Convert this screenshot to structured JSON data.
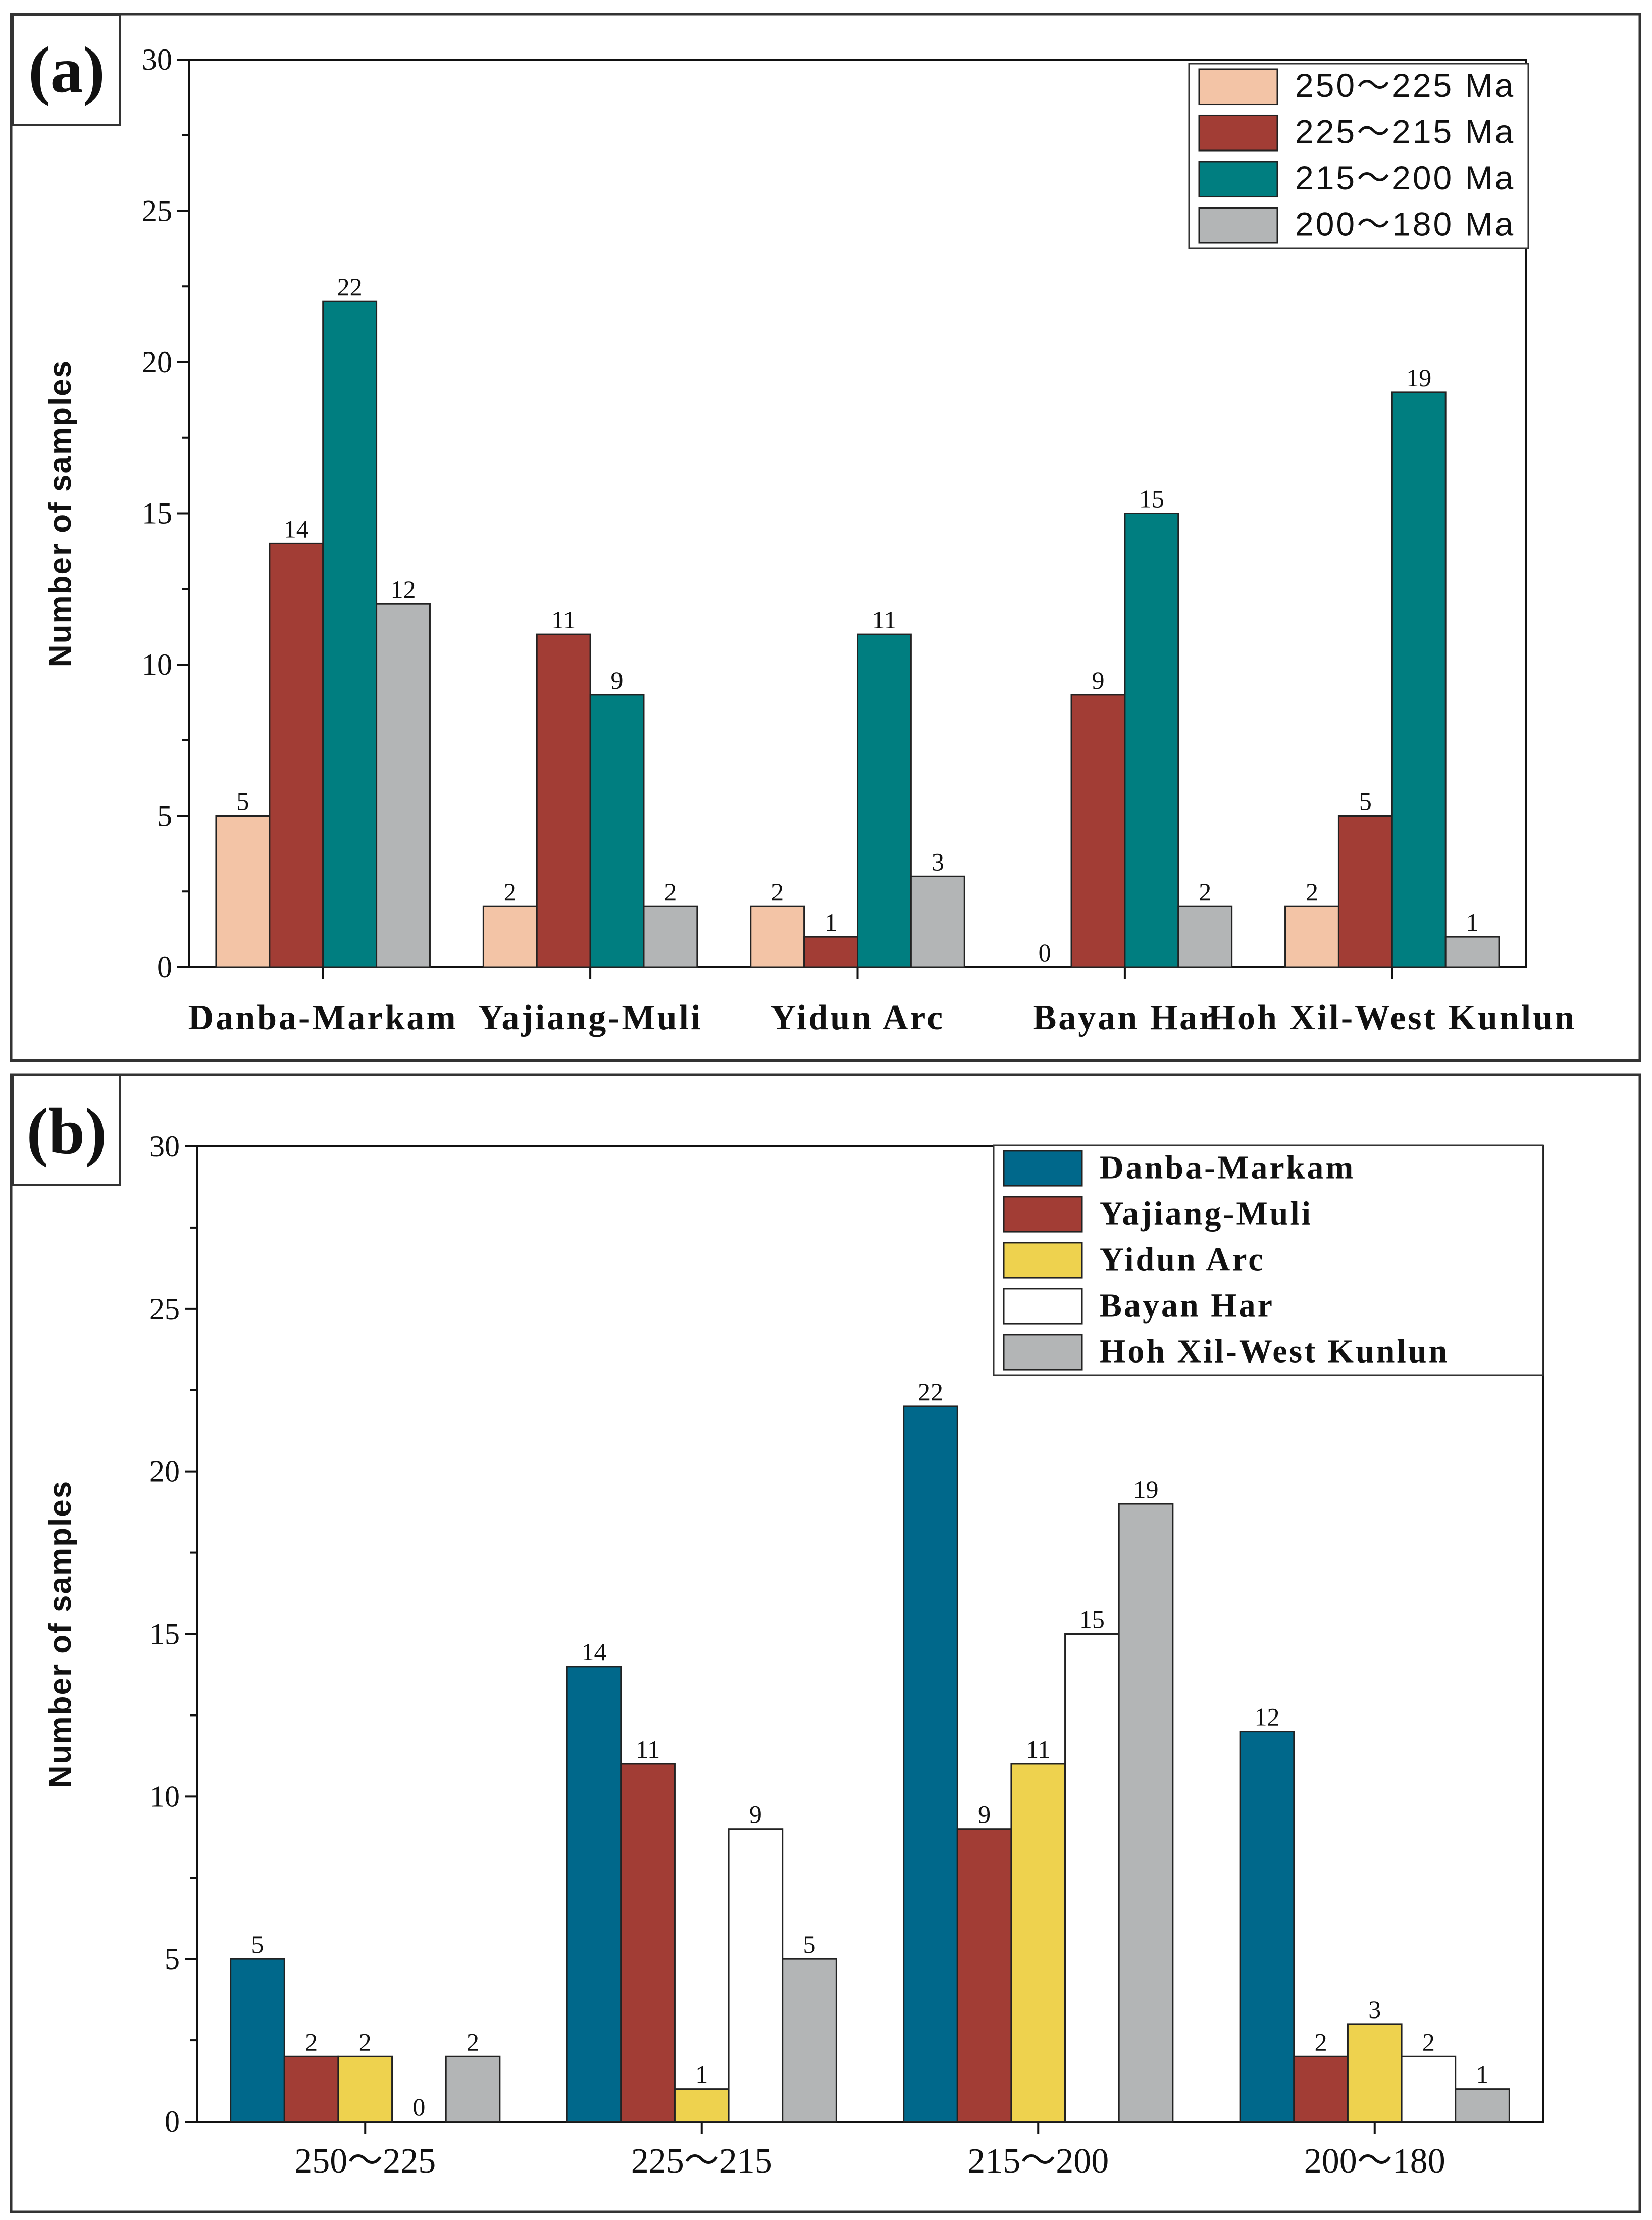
{
  "colors": {
    "age_250_225": "#F3C4A6",
    "age_225_215": "#A23D35",
    "age_215_200": "#007E80",
    "age_200_180": "#B3B5B6",
    "danba_markam": "#00688B",
    "yajiang_muli": "#A23D35",
    "yidun_arc": "#EED24E",
    "bayan_har": "#FFFFFF",
    "hoh_xil": "#B3B5B6"
  },
  "chart_data": [
    {
      "panel_label": "(a)",
      "type": "bar",
      "ylabel": "Number of samples",
      "xlabel": "",
      "ylim": [
        0,
        30
      ],
      "yticks": [
        0,
        5,
        10,
        15,
        20,
        25,
        30
      ],
      "categories": [
        "Danba-Markam",
        "Yajiang-Muli",
        "Yidun Arc",
        "Bayan Har",
        "Hoh Xil-West Kunlun"
      ],
      "legend_position": "top-right",
      "series": [
        {
          "name": "250～225 Ma",
          "color_key": "age_250_225",
          "values": [
            5,
            2,
            2,
            0,
            2
          ]
        },
        {
          "name": "225～215 Ma",
          "color_key": "age_225_215",
          "values": [
            14,
            11,
            1,
            9,
            5
          ]
        },
        {
          "name": "215～200 Ma",
          "color_key": "age_215_200",
          "values": [
            22,
            9,
            11,
            15,
            19
          ]
        },
        {
          "name": "200～180 Ma",
          "color_key": "age_200_180",
          "values": [
            12,
            2,
            3,
            2,
            1
          ]
        }
      ],
      "data_labels": [
        [
          "5",
          "2",
          "2",
          "0",
          "2"
        ],
        [
          "14",
          "11",
          "1",
          "9",
          "5"
        ],
        [
          "22",
          "9",
          "11",
          "15",
          "19"
        ],
        [
          "12",
          "2",
          "3",
          "2",
          "1"
        ]
      ]
    },
    {
      "panel_label": "(b)",
      "type": "bar",
      "ylabel": "Number of samples",
      "xlabel": "",
      "ylim": [
        0,
        30
      ],
      "yticks": [
        0,
        5,
        10,
        15,
        20,
        25,
        30
      ],
      "categories": [
        "250～225",
        "225～215",
        "215～200",
        "200～180"
      ],
      "legend_position": "top-right",
      "series": [
        {
          "name": "Danba-Markam",
          "color_key": "danba_markam",
          "values": [
            5,
            14,
            22,
            12
          ]
        },
        {
          "name": "Yajiang-Muli",
          "color_key": "yajiang_muli",
          "values": [
            2,
            11,
            9,
            2
          ]
        },
        {
          "name": "Yidun Arc",
          "color_key": "yidun_arc",
          "values": [
            2,
            1,
            11,
            3
          ]
        },
        {
          "name": "Bayan Har",
          "color_key": "bayan_har",
          "values": [
            0,
            9,
            15,
            2
          ]
        },
        {
          "name": "Hoh Xil-West Kunlun",
          "color_key": "hoh_xil",
          "values": [
            2,
            5,
            19,
            1
          ]
        }
      ],
      "data_labels": [
        [
          "5",
          "14",
          "22",
          "12"
        ],
        [
          "2",
          "11",
          "9",
          "2"
        ],
        [
          "2",
          "1",
          "11",
          "3"
        ],
        [
          "0",
          "9",
          "15",
          "2"
        ],
        [
          "2",
          "5",
          "19",
          "1"
        ]
      ]
    }
  ]
}
